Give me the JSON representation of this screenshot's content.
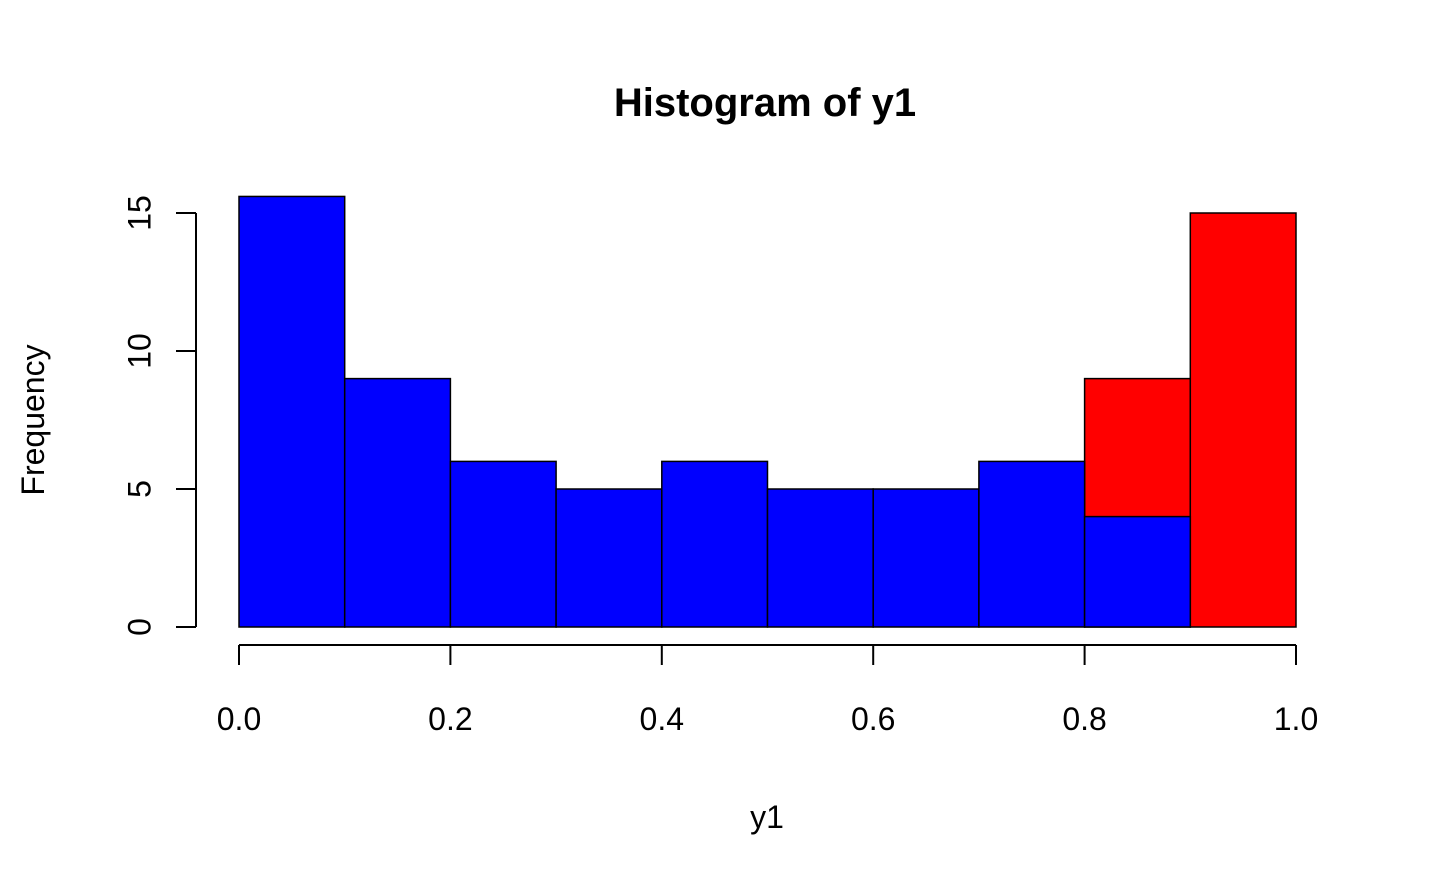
{
  "chart_data": {
    "type": "bar",
    "title": "Histogram of y1",
    "xlabel": "y1",
    "ylabel": "Frequency",
    "xlim": [
      0,
      1
    ],
    "ylim": [
      0,
      15.6
    ],
    "x_ticks": [
      "0.0",
      "0.2",
      "0.4",
      "0.6",
      "0.8",
      "1.0"
    ],
    "y_ticks": [
      "0",
      "5",
      "10",
      "15"
    ],
    "bins": [
      [
        0.0,
        0.1
      ],
      [
        0.1,
        0.2
      ],
      [
        0.2,
        0.3
      ],
      [
        0.3,
        0.4
      ],
      [
        0.4,
        0.5
      ],
      [
        0.5,
        0.6
      ],
      [
        0.6,
        0.7
      ],
      [
        0.7,
        0.8
      ],
      [
        0.8,
        0.9
      ],
      [
        0.9,
        1.0
      ]
    ],
    "series": [
      {
        "color": "#ff0000",
        "values": [
          0,
          0,
          0,
          0,
          0,
          0,
          0,
          0,
          9,
          15
        ]
      },
      {
        "color": "#0000ff",
        "values": [
          15.6,
          9,
          6,
          5,
          6,
          5,
          5,
          6,
          4,
          0
        ]
      }
    ],
    "grid": false
  }
}
